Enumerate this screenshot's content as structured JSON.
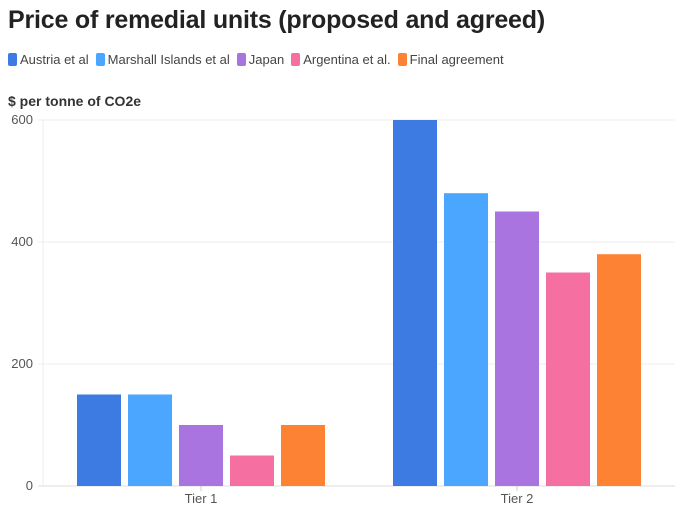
{
  "chart_data": {
    "type": "bar",
    "title": "Price of remedial units (proposed and agreed)",
    "xlabel": "",
    "ylabel": "$ per tonne of CO2e",
    "ylim": [
      0,
      600
    ],
    "yticks": [
      0,
      200,
      400,
      600
    ],
    "grid": true,
    "legend_position": "top-left",
    "categories": [
      "Tier 1",
      "Tier 2"
    ],
    "series": [
      {
        "name": "Austria et al",
        "color": "#3d7be3",
        "values": [
          150,
          600
        ]
      },
      {
        "name": "Marshall Islands et al",
        "color": "#4aa6ff",
        "values": [
          150,
          480
        ]
      },
      {
        "name": "Japan",
        "color": "#a973e0",
        "values": [
          100,
          450
        ]
      },
      {
        "name": "Argentina et al.",
        "color": "#f56fa0",
        "values": [
          50,
          350
        ]
      },
      {
        "name": "Final agreement",
        "color": "#fd8233",
        "values": [
          100,
          380
        ]
      }
    ]
  }
}
